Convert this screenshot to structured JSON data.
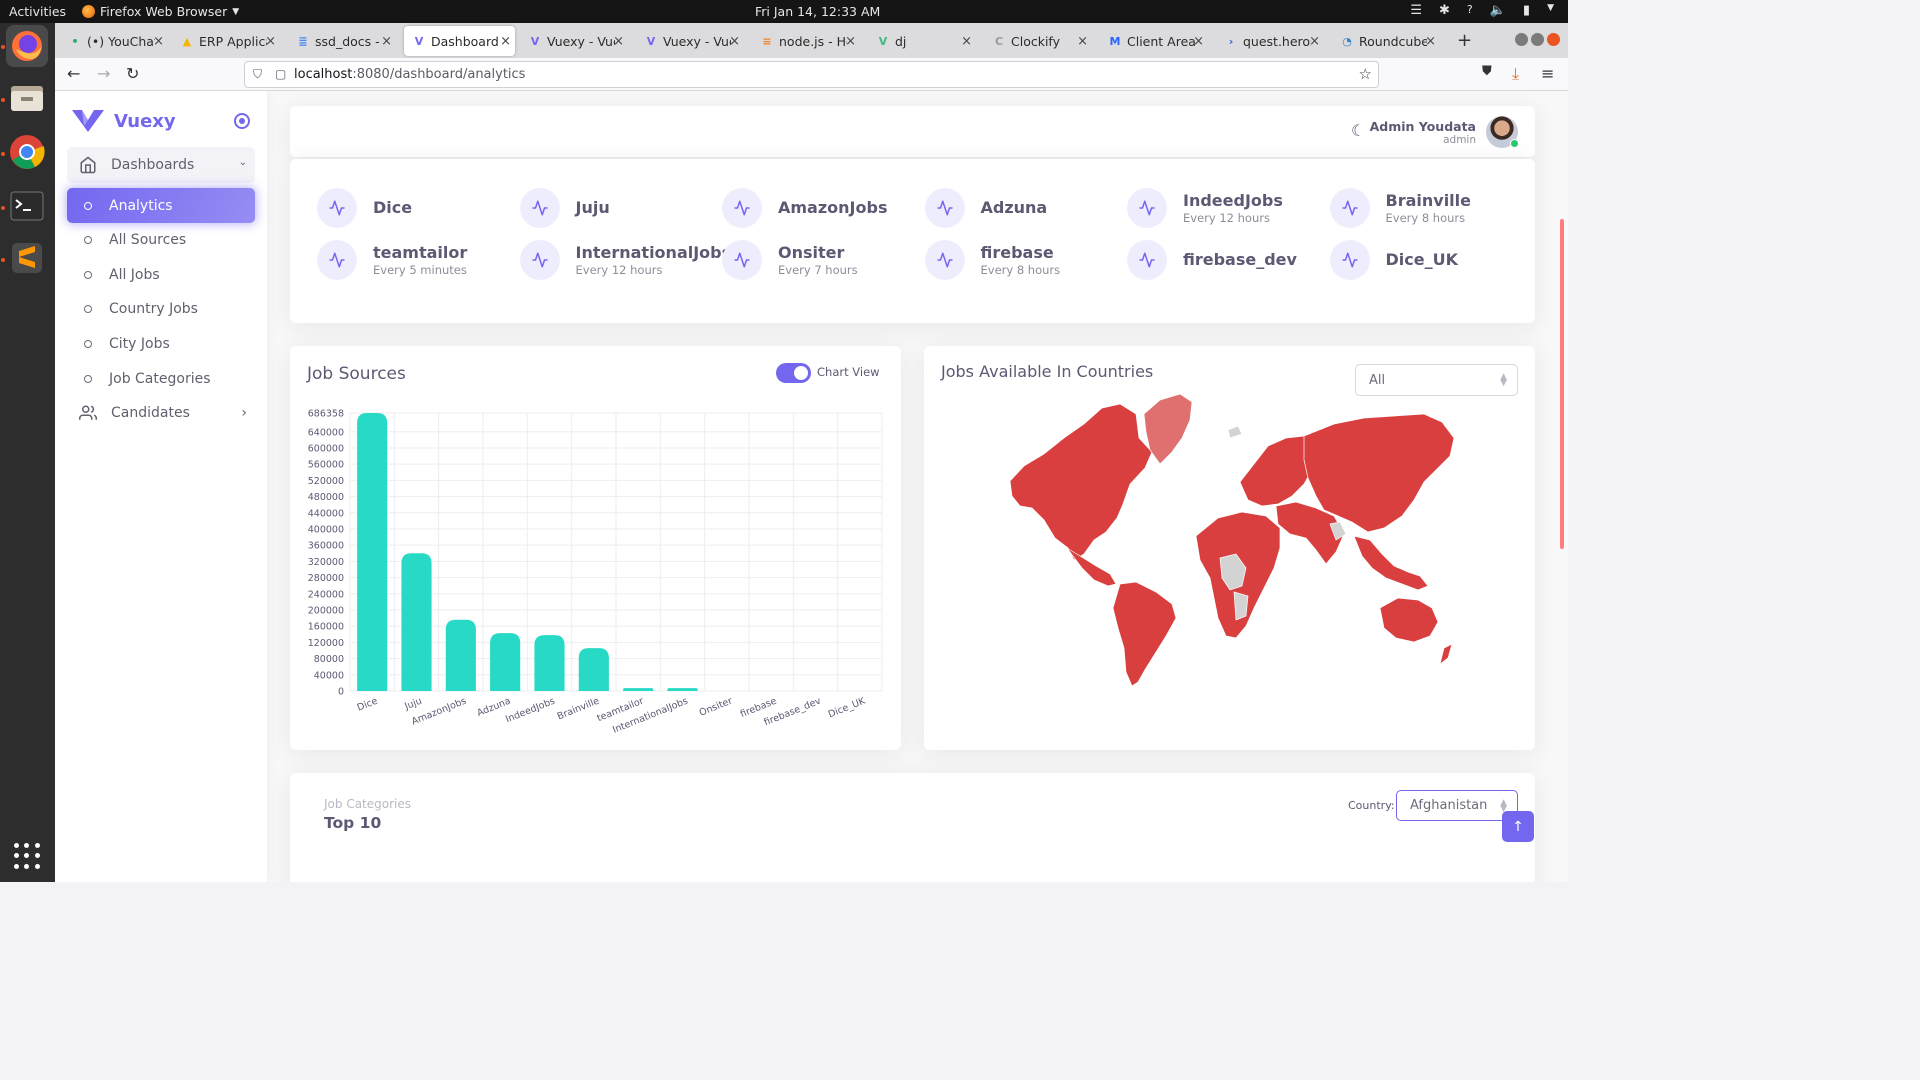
{
  "os": {
    "activities": "Activities",
    "app_name": "Firefox Web Browser",
    "clock": "Fri Jan 14, 12:33 AM"
  },
  "browser": {
    "tabs": [
      {
        "title": "(•) YouChat",
        "icon": "youchat-icon",
        "active": false
      },
      {
        "title": "ERP Applicati",
        "icon": "drive-icon",
        "active": false
      },
      {
        "title": "ssd_docs - Go",
        "icon": "docs-icon",
        "active": false
      },
      {
        "title": "Dashboard U",
        "icon": "vuexy-icon",
        "active": true
      },
      {
        "title": "Vuexy - Vuej",
        "icon": "vuexy-icon",
        "active": false
      },
      {
        "title": "Vuexy - Vuej",
        "icon": "vuexy-icon",
        "active": false
      },
      {
        "title": "node.js - Hov",
        "icon": "stackoverflow-icon",
        "active": false
      },
      {
        "title": "dj",
        "icon": "vue-icon",
        "active": false
      },
      {
        "title": "Clockify",
        "icon": "clockify-icon",
        "active": false
      },
      {
        "title": "Client Area -",
        "icon": "m-icon",
        "active": false
      },
      {
        "title": "quest.herosi",
        "icon": "arrow-icon",
        "active": false
      },
      {
        "title": "Roundcube W",
        "icon": "roundcube-icon",
        "active": false
      }
    ],
    "url_host": "localhost",
    "url_path": ":8080/dashboard/analytics"
  },
  "sidebar": {
    "brand": "Vuexy",
    "dashboards_label": "Dashboards",
    "items": [
      {
        "label": "Analytics",
        "active": true
      },
      {
        "label": "All Sources",
        "active": false
      },
      {
        "label": "All Jobs",
        "active": false
      },
      {
        "label": "Country Jobs",
        "active": false
      },
      {
        "label": "City Jobs",
        "active": false
      },
      {
        "label": "Job Categories",
        "active": false
      }
    ],
    "candidates_label": "Candidates"
  },
  "navbar": {
    "user_name": "Admin Youdata",
    "user_role": "admin"
  },
  "sources": [
    {
      "name": "Dice",
      "freq": ""
    },
    {
      "name": "Juju",
      "freq": ""
    },
    {
      "name": "AmazonJobs",
      "freq": ""
    },
    {
      "name": "Adzuna",
      "freq": ""
    },
    {
      "name": "IndeedJobs",
      "freq": "Every 12 hours"
    },
    {
      "name": "Brainville",
      "freq": "Every 8 hours"
    },
    {
      "name": "teamtailor",
      "freq": "Every 5 minutes"
    },
    {
      "name": "InternationalJobs",
      "freq": "Every 12 hours"
    },
    {
      "name": "Onsiter",
      "freq": "Every 7 hours"
    },
    {
      "name": "firebase",
      "freq": "Every 8 hours"
    },
    {
      "name": "firebase_dev",
      "freq": ""
    },
    {
      "name": "Dice_UK",
      "freq": ""
    }
  ],
  "job_sources": {
    "title": "Job Sources",
    "toggle_label": "Chart View",
    "toggle_on": true,
    "bar_color": "#28dac6"
  },
  "chart_data": {
    "type": "bar",
    "categories": [
      "Dice",
      "Juju",
      "AmazonJobs",
      "Adzuna",
      "IndeedJobs",
      "Brainville",
      "teamtailor",
      "InternationalJobs",
      "Onsiter",
      "firebase",
      "firebase_dev",
      "Dice_UK"
    ],
    "values": [
      686358,
      340000,
      176000,
      143000,
      138000,
      106000,
      7000,
      7000,
      0,
      0,
      0,
      0
    ],
    "ylim": [
      0,
      686358
    ],
    "yticks": [
      0,
      40000,
      80000,
      120000,
      160000,
      200000,
      240000,
      280000,
      320000,
      360000,
      400000,
      440000,
      480000,
      520000,
      560000,
      600000,
      640000,
      686358
    ],
    "xlabel": "",
    "ylabel": "",
    "grid": true
  },
  "countries": {
    "title": "Jobs Available In Countries",
    "filter_value": "All",
    "map_color": "#da3f3f"
  },
  "job_categories": {
    "subtitle": "Job Categories",
    "title": "Top 10",
    "country_label": "Country:",
    "country_value": "Afghanistan"
  },
  "colors": {
    "primary": "#7367f0",
    "bar": "#28dac6"
  }
}
